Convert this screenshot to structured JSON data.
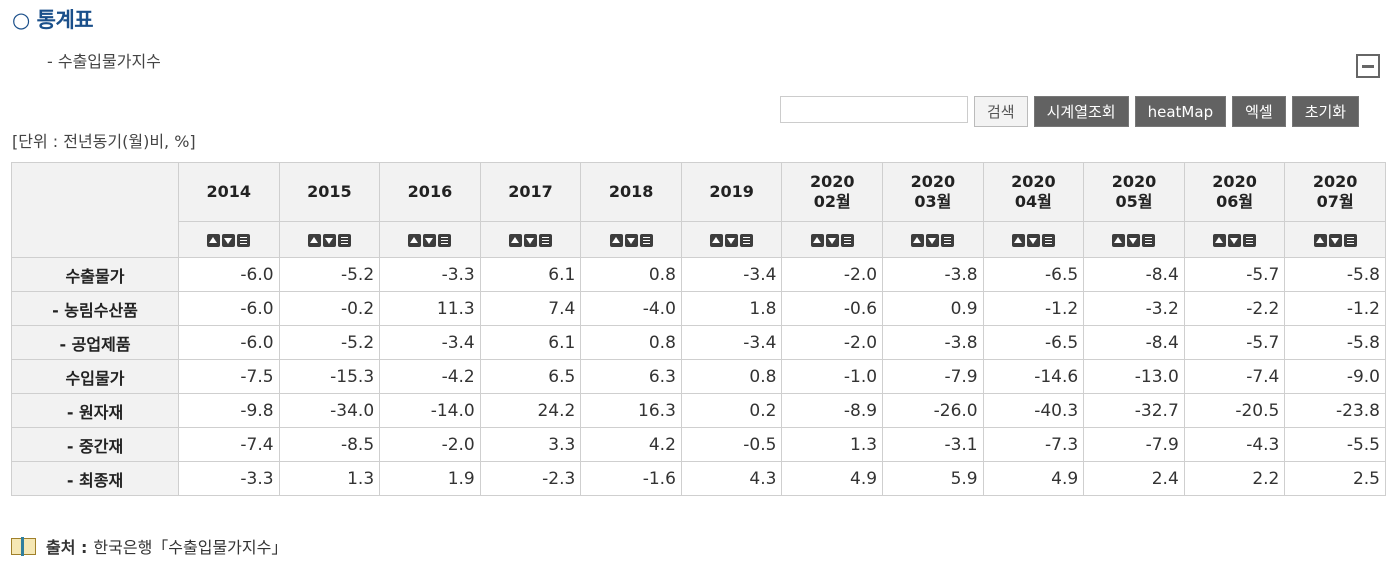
{
  "title": "○ 통계표",
  "subtitle": "- 수출입물가지수",
  "toolbar": {
    "search_label": "검색",
    "timeseries_label": "시계열조회",
    "heatmap_label": "heatMap",
    "excel_label": "엑셀",
    "reset_label": "초기화"
  },
  "unit": "[단위 : 전년동기(월)비, %]",
  "columns": [
    {
      "line1": "2014",
      "line2": ""
    },
    {
      "line1": "2015",
      "line2": ""
    },
    {
      "line1": "2016",
      "line2": ""
    },
    {
      "line1": "2017",
      "line2": ""
    },
    {
      "line1": "2018",
      "line2": ""
    },
    {
      "line1": "2019",
      "line2": ""
    },
    {
      "line1": "2020",
      "line2": "02월"
    },
    {
      "line1": "2020",
      "line2": "03월"
    },
    {
      "line1": "2020",
      "line2": "04월"
    },
    {
      "line1": "2020",
      "line2": "05월"
    },
    {
      "line1": "2020",
      "line2": "06월"
    },
    {
      "line1": "2020",
      "line2": "07월"
    }
  ],
  "rows": [
    {
      "label": "수출물가",
      "values": [
        "-6.0",
        "-5.2",
        "-3.3",
        "6.1",
        "0.8",
        "-3.4",
        "-2.0",
        "-3.8",
        "-6.5",
        "-8.4",
        "-5.7",
        "-5.8"
      ]
    },
    {
      "label": "- 농림수산품",
      "values": [
        "-6.0",
        "-0.2",
        "11.3",
        "7.4",
        "-4.0",
        "1.8",
        "-0.6",
        "0.9",
        "-1.2",
        "-3.2",
        "-2.2",
        "-1.2"
      ]
    },
    {
      "label": "- 공업제품",
      "values": [
        "-6.0",
        "-5.2",
        "-3.4",
        "6.1",
        "0.8",
        "-3.4",
        "-2.0",
        "-3.8",
        "-6.5",
        "-8.4",
        "-5.7",
        "-5.8"
      ]
    },
    {
      "label": "수입물가",
      "values": [
        "-7.5",
        "-15.3",
        "-4.2",
        "6.5",
        "6.3",
        "0.8",
        "-1.0",
        "-7.9",
        "-14.6",
        "-13.0",
        "-7.4",
        "-9.0"
      ]
    },
    {
      "label": "- 원자재",
      "values": [
        "-9.8",
        "-34.0",
        "-14.0",
        "24.2",
        "16.3",
        "0.2",
        "-8.9",
        "-26.0",
        "-40.3",
        "-32.7",
        "-20.5",
        "-23.8"
      ]
    },
    {
      "label": "- 중간재",
      "values": [
        "-7.4",
        "-8.5",
        "-2.0",
        "3.3",
        "4.2",
        "-0.5",
        "1.3",
        "-3.1",
        "-7.3",
        "-7.9",
        "-4.3",
        "-5.5"
      ]
    },
    {
      "label": "- 최종재",
      "values": [
        "-3.3",
        "1.3",
        "1.9",
        "-2.3",
        "-1.6",
        "4.3",
        "4.9",
        "5.9",
        "4.9",
        "2.4",
        "2.2",
        "2.5"
      ]
    }
  ],
  "source": {
    "label": "출처 :",
    "text": "한국은행「수출입물가지수」"
  }
}
